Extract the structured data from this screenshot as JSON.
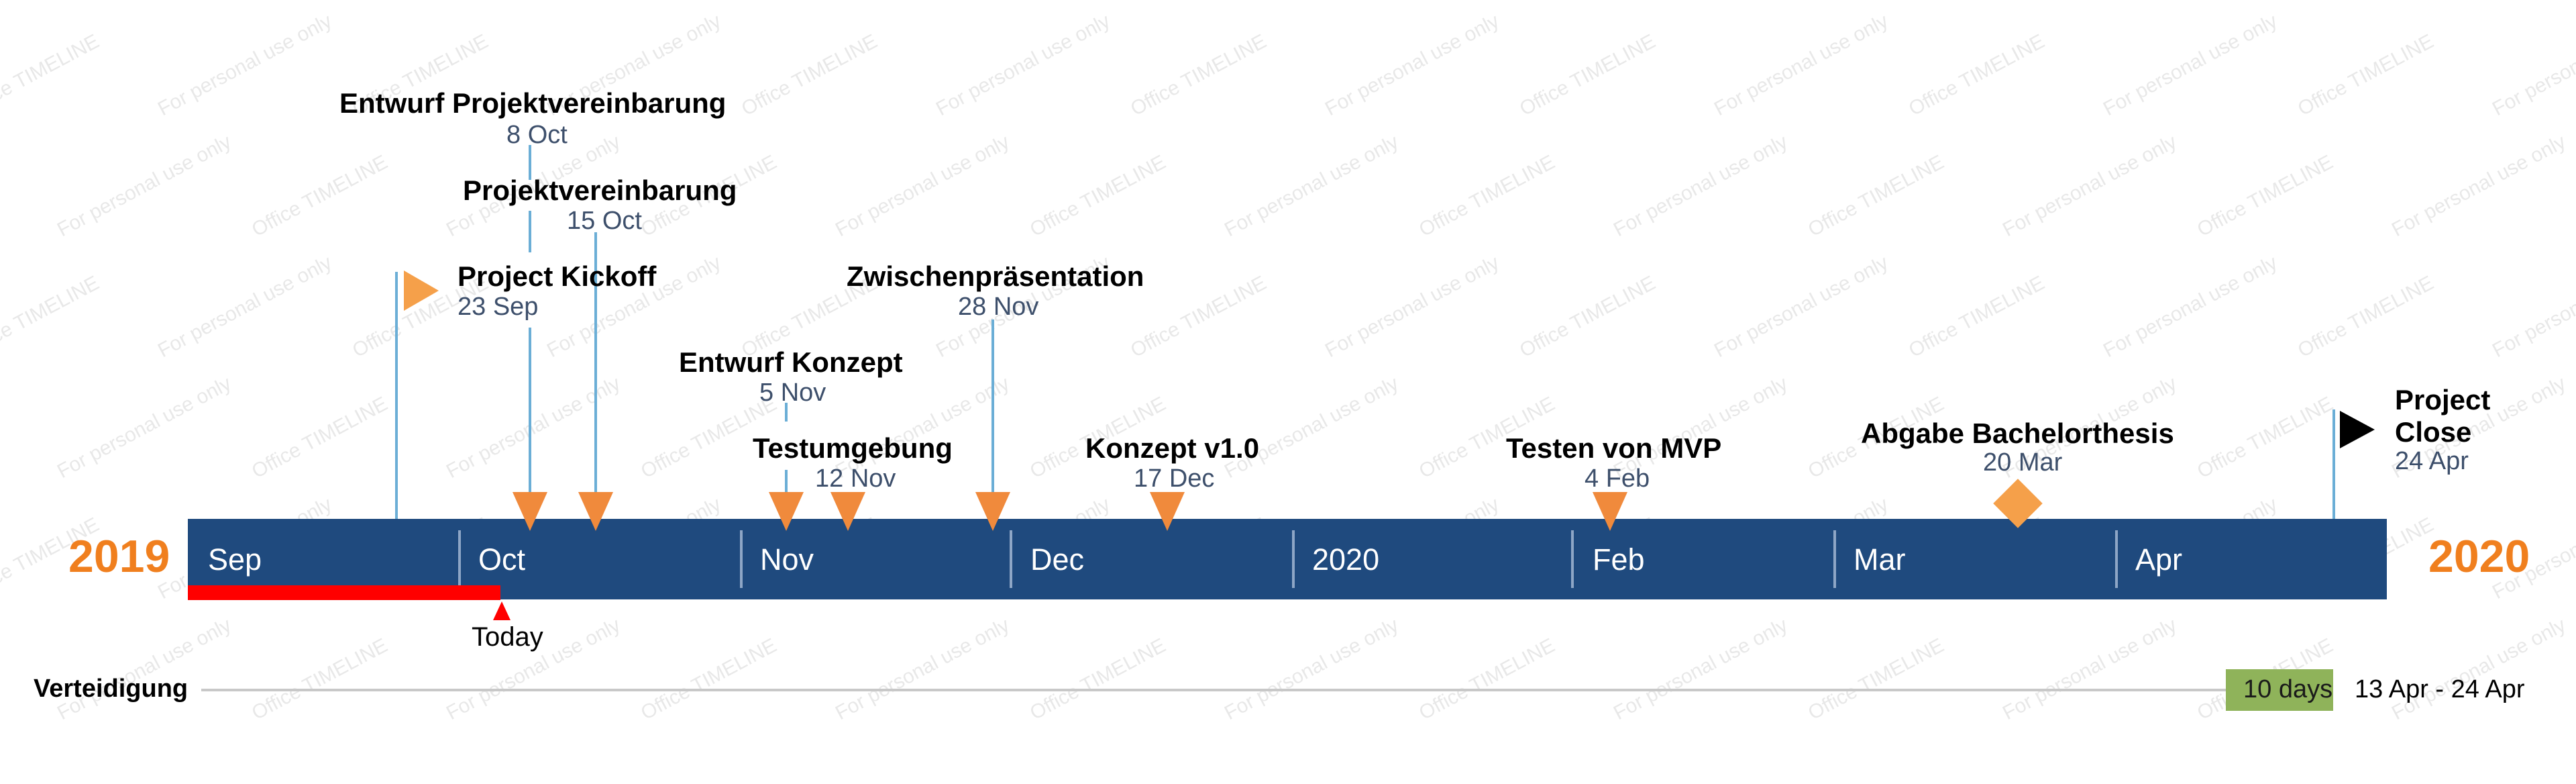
{
  "watermark": {
    "office": "Office TIMELINE",
    "personal": "For personal use only"
  },
  "timeline": {
    "start_year": "2019",
    "end_year": "2020",
    "year_color": "#f07f1e",
    "bar_color": "#1f4a7e",
    "months": [
      "Sep",
      "Oct",
      "Nov",
      "Dec",
      "2020",
      "Feb",
      "Mar",
      "Apr"
    ]
  },
  "today": {
    "label": "Today",
    "color": "#ff0000"
  },
  "milestones": [
    {
      "title": "Entwurf Projektvereinbarung",
      "date": "8 Oct",
      "shape": "triangle-down",
      "color": "#f08a3c"
    },
    {
      "title": "Projektvereinbarung",
      "date": "15 Oct",
      "shape": "triangle-down",
      "color": "#f08a3c"
    },
    {
      "title": "Project Kickoff",
      "date": "23 Sep",
      "shape": "triangle-right",
      "color": "#f5a04a"
    },
    {
      "title": "Zwischenpräsentation",
      "date": "28 Nov",
      "shape": "triangle-down",
      "color": "#f08a3c"
    },
    {
      "title": "Entwurf Konzept",
      "date": "5 Nov",
      "shape": "triangle-down",
      "color": "#f08a3c"
    },
    {
      "title": "Testumgebung",
      "date": "12 Nov",
      "shape": "triangle-down",
      "color": "#f08a3c"
    },
    {
      "title": "Konzept v1.0",
      "date": "17 Dec",
      "shape": "triangle-down",
      "color": "#f08a3c"
    },
    {
      "title": "Testen von MVP",
      "date": "4 Feb",
      "shape": "triangle-down",
      "color": "#f08a3c"
    },
    {
      "title": "Abgabe Bachelorthesis",
      "date": "20 Mar",
      "shape": "diamond",
      "color": "#f5a04a"
    },
    {
      "title_line1": "Project",
      "title_line2": "Close",
      "date": "24 Apr",
      "shape": "flag-black",
      "color": "#000000"
    }
  ],
  "task": {
    "label": "Verteidigung",
    "duration": "10 days",
    "range": "13 Apr - 24 Apr",
    "bar_color": "#8fb35a"
  }
}
